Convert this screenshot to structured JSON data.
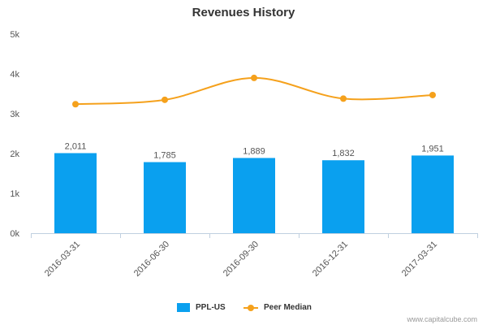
{
  "chart_data": {
    "type": "bar",
    "title": "Revenues History",
    "categories": [
      "2016-03-31",
      "2016-06-30",
      "2016-09-30",
      "2016-12-31",
      "2017-03-31"
    ],
    "series": [
      {
        "name": "PPL-US",
        "kind": "bar",
        "color": "#0aa0ef",
        "values": [
          2011,
          1785,
          1889,
          1832,
          1951
        ],
        "labels": [
          "2,011",
          "1,785",
          "1,889",
          "1,832",
          "1,951"
        ]
      },
      {
        "name": "Peer Median",
        "kind": "line",
        "color": "#f5a11c",
        "values": [
          3240,
          3350,
          3900,
          3380,
          3470
        ]
      }
    ],
    "ylim": [
      0,
      5000
    ],
    "yticks": [
      0,
      1000,
      2000,
      3000,
      4000,
      5000
    ],
    "ytick_labels": [
      "0k",
      "1k",
      "2k",
      "3k",
      "4k",
      "5k"
    ],
    "grid": false,
    "legend_position": "bottom"
  },
  "credit": "www.capitalcube.com"
}
